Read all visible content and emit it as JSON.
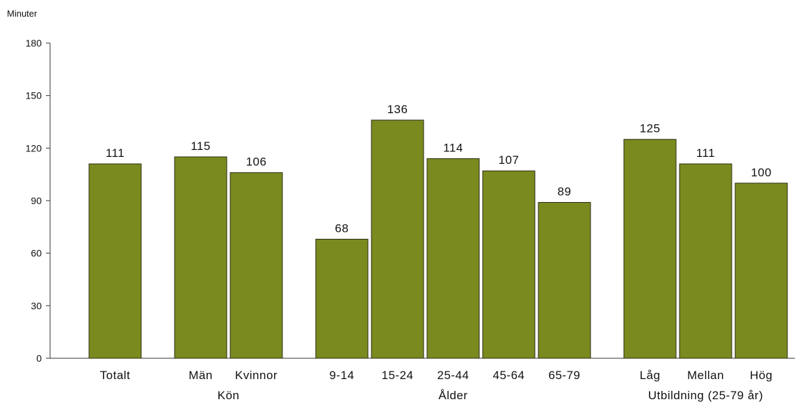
{
  "chart_data": {
    "type": "bar",
    "ylabel": "Minuter",
    "ylim": [
      0,
      180
    ],
    "yticks": [
      0,
      30,
      60,
      90,
      120,
      150,
      180
    ],
    "grid": false,
    "bar_color": "#7b8a1e",
    "categories": [
      "Totalt",
      "Män",
      "Kvinnor",
      "9-14",
      "15-24",
      "25-44",
      "45-64",
      "65-79",
      "Låg",
      "Mellan",
      "Hög"
    ],
    "values": [
      111,
      115,
      106,
      68,
      136,
      114,
      107,
      89,
      125,
      111,
      100
    ],
    "groups": [
      {
        "label": "",
        "categories": [
          "Totalt"
        ]
      },
      {
        "label": "Kön",
        "categories": [
          "Män",
          "Kvinnor"
        ]
      },
      {
        "label": "Ålder",
        "categories": [
          "9-14",
          "15-24",
          "25-44",
          "45-64",
          "65-79"
        ]
      },
      {
        "label": "Utbildning (25-79 år)",
        "categories": [
          "Låg",
          "Mellan",
          "Hög"
        ]
      }
    ]
  }
}
